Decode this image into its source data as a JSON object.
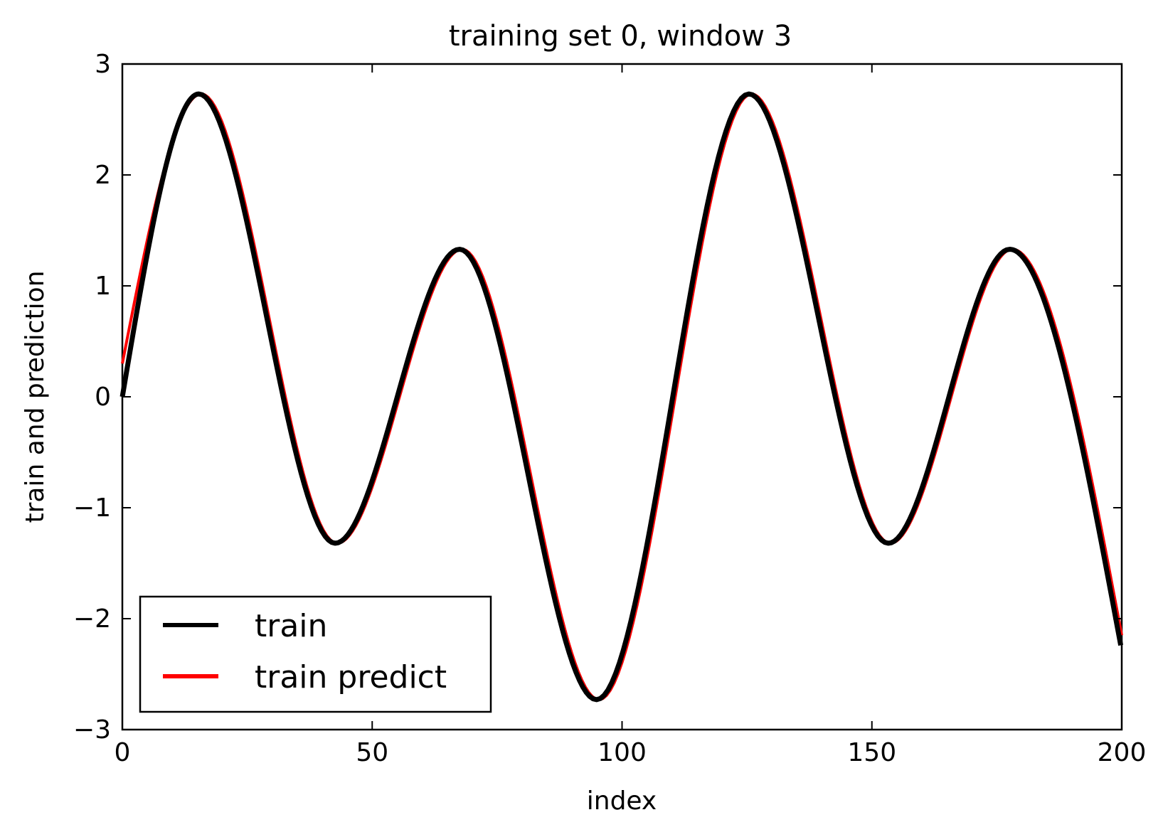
{
  "chart_data": {
    "type": "line",
    "title": "training set 0, window 3",
    "xlabel": "index",
    "ylabel": "train and prediction",
    "xlim": [
      0,
      200
    ],
    "ylim": [
      -3,
      3
    ],
    "x_ticks": [
      0,
      50,
      100,
      150,
      200
    ],
    "x_tick_labels": [
      "0",
      "50",
      "100",
      "150",
      "200"
    ],
    "y_ticks": [
      3,
      2,
      1,
      0,
      -1,
      -2,
      -3
    ],
    "y_tick_labels": [
      "3",
      "2",
      "1",
      "0",
      "−1",
      "−2",
      "−3"
    ],
    "grid": false,
    "legend": {
      "placement": "lower-left"
    },
    "series": [
      {
        "name": "train",
        "color": "#000000",
        "x": [
          0,
          15.3,
          42.6,
          67.5,
          94.9,
          125.4,
          153.3,
          177.6,
          199.8
        ],
        "y": [
          0,
          2.73,
          -1.32,
          1.33,
          -2.73,
          2.73,
          -1.32,
          1.33,
          -2.24
        ]
      },
      {
        "name": "train predict",
        "color": "#ff0000",
        "x": [
          0,
          15.8,
          43.0,
          68.0,
          95.4,
          125.9,
          153.7,
          178.1,
          200
        ],
        "y": [
          0.3,
          2.73,
          -1.32,
          1.33,
          -2.73,
          2.73,
          -1.32,
          1.33,
          -2.15
        ]
      }
    ]
  }
}
